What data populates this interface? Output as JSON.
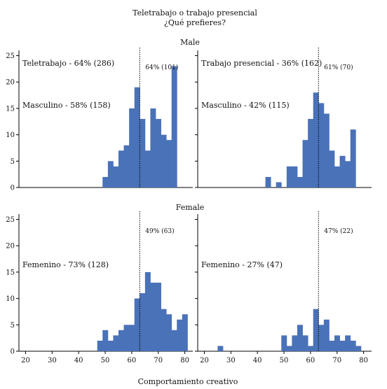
{
  "chart_data": {
    "type": "bar",
    "title_line1": "Teletrabajo o trabajo presencial",
    "title_line2": "¿Qué prefieres?",
    "xlabel": "Comportamiento creativo",
    "ylabel": "",
    "xlim": [
      17.5,
      83
    ],
    "ylim": [
      0,
      26
    ],
    "xticks": [
      20,
      30,
      40,
      50,
      60,
      70,
      80
    ],
    "yticks": [
      0,
      5,
      10,
      15,
      20,
      25
    ],
    "bin_start": 25,
    "bin_width": 2,
    "color": "#4a72b8",
    "rows": [
      {
        "label": "Male"
      },
      {
        "label": "Female"
      }
    ],
    "panels": [
      {
        "row": 0,
        "col": 0,
        "group_label": "Teletrabajo - 64% (286)",
        "sub_label": "Masculino - 58% (158)",
        "ref_label": "64% (101)",
        "ref_x": 63,
        "counts": [
          0,
          0,
          0,
          0,
          0,
          0,
          0,
          0,
          0,
          0,
          0,
          0,
          2,
          5,
          4,
          7,
          8,
          15,
          19,
          13,
          7,
          15,
          13,
          10,
          9,
          23,
          0,
          0
        ]
      },
      {
        "row": 0,
        "col": 1,
        "group_label": "Trabajo presencial - 36% (162)",
        "sub_label": "Masculino - 42% (115)",
        "ref_label": "61% (70)",
        "ref_x": 63,
        "counts": [
          0,
          0,
          0,
          0,
          0,
          0,
          0,
          0,
          0,
          2,
          0,
          1,
          0,
          4,
          4,
          2,
          9,
          13,
          18,
          16,
          14,
          7,
          4,
          6,
          5,
          11,
          0,
          0
        ]
      },
      {
        "row": 1,
        "col": 0,
        "group_label": "",
        "sub_label": "Femenino - 73% (128)",
        "ref_label": "49% (63)",
        "ref_x": 63,
        "counts": [
          0,
          0,
          0,
          0,
          0,
          0,
          0,
          0,
          0,
          0,
          0,
          2,
          4,
          2,
          3,
          4,
          5,
          5,
          10,
          11,
          15,
          13,
          13,
          8,
          7,
          4,
          6,
          7
        ]
      },
      {
        "row": 1,
        "col": 1,
        "group_label": "",
        "sub_label": "Femenino - 27% (47)",
        "ref_label": "47% (22)",
        "ref_x": 63,
        "counts": [
          1,
          0,
          0,
          0,
          0,
          0,
          0,
          0,
          0,
          0,
          0,
          0,
          3,
          1,
          3,
          5,
          3,
          1,
          8,
          5,
          6,
          2,
          3,
          2,
          3,
          2,
          1,
          0
        ]
      }
    ]
  }
}
